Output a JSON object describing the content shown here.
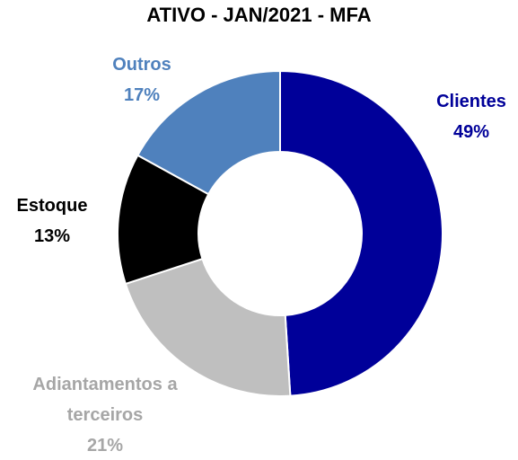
{
  "chart_data": {
    "type": "donut",
    "title": "ATIVO - JAN/2021 - MFA",
    "categories": [
      "Clientes",
      "Adiantamentos a terceiros",
      "Estoque",
      "Outros"
    ],
    "values": [
      49,
      21,
      13,
      17
    ],
    "value_labels": [
      "49%",
      "21%",
      "13%",
      "17%"
    ],
    "colors": [
      "#000099",
      "#bfbfbf",
      "#000000",
      "#4f81bd"
    ]
  }
}
